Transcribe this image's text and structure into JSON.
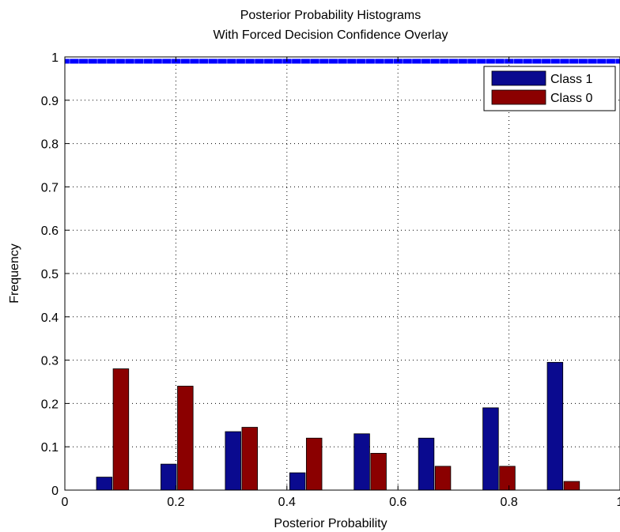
{
  "chart_data": {
    "type": "bar",
    "title_line1": "Posterior Probability Histograms",
    "title_line2": "With Forced Decision Confidence Overlay",
    "xlabel": "Posterior Probability",
    "ylabel": "Frequency",
    "xlim": [
      0,
      1
    ],
    "ylim": [
      0,
      1
    ],
    "xticks": [
      0,
      0.2,
      0.4,
      0.6,
      0.8,
      1
    ],
    "xtick_labels": [
      "0",
      "0.2",
      "0.4",
      "0.6",
      "0.8",
      "1"
    ],
    "yticks": [
      0,
      0.1,
      0.2,
      0.3,
      0.4,
      0.5,
      0.6,
      0.7,
      0.8,
      0.9,
      1
    ],
    "ytick_labels": [
      "0",
      "0.1",
      "0.2",
      "0.3",
      "0.4",
      "0.5",
      "0.6",
      "0.7",
      "0.8",
      "0.9",
      "1"
    ],
    "grid": true,
    "legend_position": "top-right",
    "bar_width": 0.028,
    "series": [
      {
        "name": "Class 1",
        "color": "#0a0a8f",
        "x": [
          0.071,
          0.187,
          0.303,
          0.419,
          0.535,
          0.651,
          0.767,
          0.883
        ],
        "values": [
          0.03,
          0.06,
          0.135,
          0.04,
          0.13,
          0.12,
          0.19,
          0.295
        ]
      },
      {
        "name": "Class 0",
        "color": "#8b0000",
        "x": [
          0.101,
          0.217,
          0.333,
          0.449,
          0.565,
          0.681,
          0.797,
          0.913
        ],
        "values": [
          0.28,
          0.24,
          0.145,
          0.12,
          0.085,
          0.055,
          0.055,
          0.02
        ]
      }
    ],
    "overlay": {
      "type": "line",
      "color": "#0000ff",
      "y": 0.99
    }
  }
}
